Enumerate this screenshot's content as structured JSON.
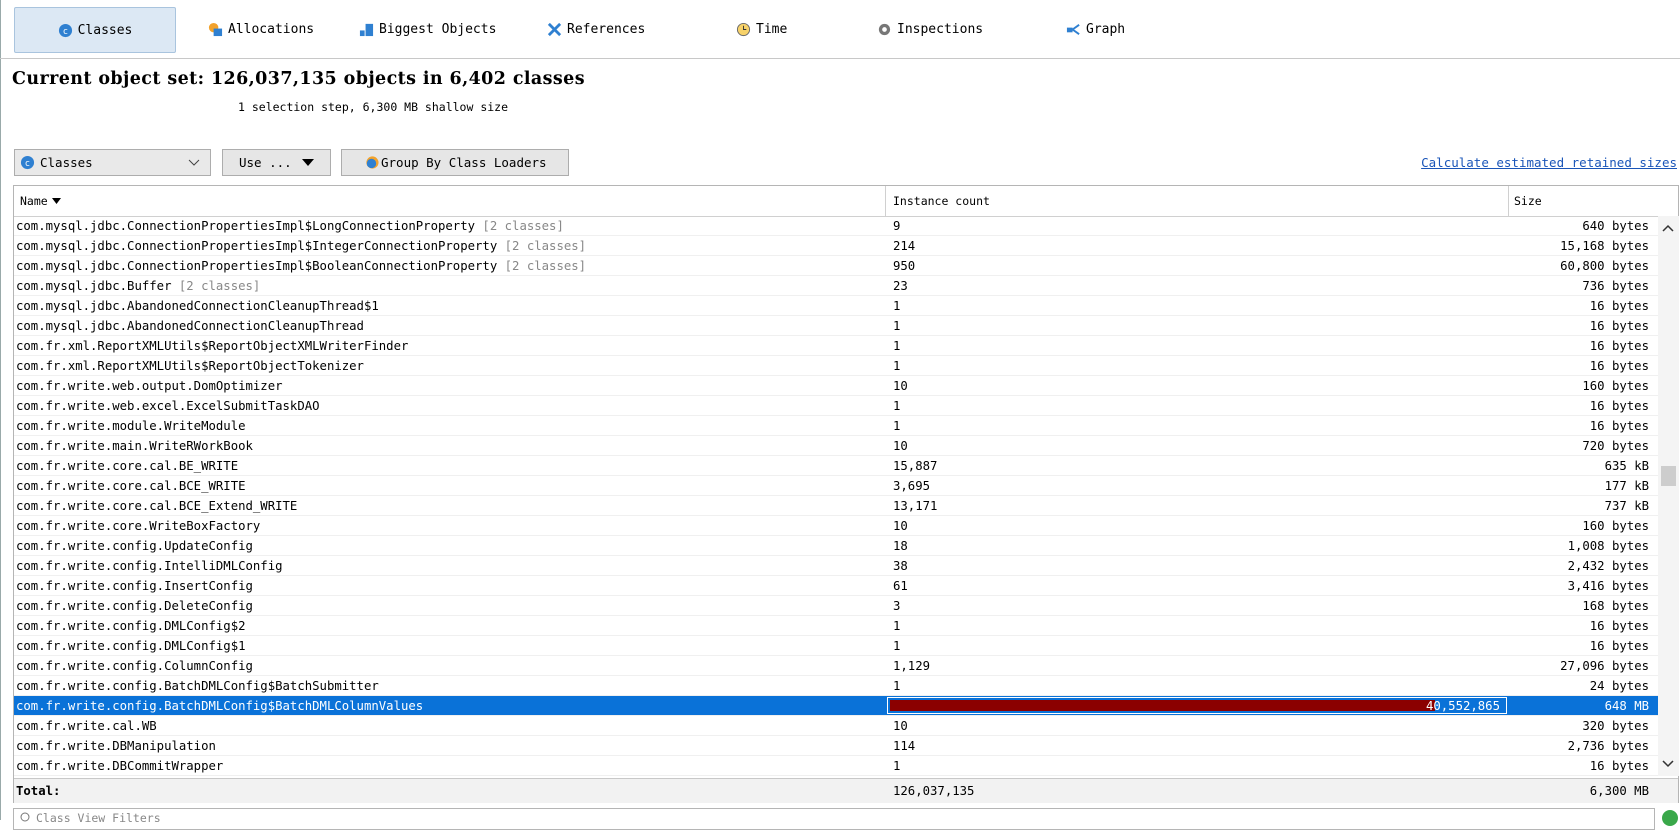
{
  "tabs": [
    "Classes",
    "Allocations",
    "Biggest Objects",
    "References",
    "Time",
    "Inspections",
    "Graph"
  ],
  "header": {
    "title": "Current object set: 126,037,135 objects in 6,402 classes",
    "subtitle": "1 selection step, 6,300 MB shallow size"
  },
  "toolbar": {
    "view_select": "Classes",
    "use_button": "Use ...",
    "group_button": "Group By Class Loaders",
    "link": "Calculate estimated retained sizes"
  },
  "table": {
    "columns": [
      "Name",
      "Instance count",
      "Size"
    ],
    "selected_row": 24,
    "rows": [
      {
        "name": "com.mysql.jdbc.ConnectionPropertiesImpl$LongConnectionProperty",
        "note": "[2 classes]",
        "count": "9",
        "size": "640 bytes"
      },
      {
        "name": "com.mysql.jdbc.ConnectionPropertiesImpl$IntegerConnectionProperty",
        "note": "[2 classes]",
        "count": "214",
        "size": "15,168 bytes"
      },
      {
        "name": "com.mysql.jdbc.ConnectionPropertiesImpl$BooleanConnectionProperty",
        "note": "[2 classes]",
        "count": "950",
        "size": "60,800 bytes"
      },
      {
        "name": "com.mysql.jdbc.Buffer",
        "note": "[2 classes]",
        "count": "23",
        "size": "736 bytes"
      },
      {
        "name": "com.mysql.jdbc.AbandonedConnectionCleanupThread$1",
        "count": "1",
        "size": "16 bytes"
      },
      {
        "name": "com.mysql.jdbc.AbandonedConnectionCleanupThread",
        "count": "1",
        "size": "16 bytes"
      },
      {
        "name": "com.fr.xml.ReportXMLUtils$ReportObjectXMLWriterFinder",
        "count": "1",
        "size": "16 bytes"
      },
      {
        "name": "com.fr.xml.ReportXMLUtils$ReportObjectTokenizer",
        "count": "1",
        "size": "16 bytes"
      },
      {
        "name": "com.fr.write.web.output.DomOptimizer",
        "count": "10",
        "size": "160 bytes"
      },
      {
        "name": "com.fr.write.web.excel.ExcelSubmitTaskDAO",
        "count": "1",
        "size": "16 bytes"
      },
      {
        "name": "com.fr.write.module.WriteModule",
        "count": "1",
        "size": "16 bytes"
      },
      {
        "name": "com.fr.write.main.WriteRWorkBook",
        "count": "10",
        "size": "720 bytes"
      },
      {
        "name": "com.fr.write.core.cal.BE_WRITE",
        "count": "15,887",
        "size": "635 kB"
      },
      {
        "name": "com.fr.write.core.cal.BCE_WRITE",
        "count": "3,695",
        "size": "177 kB"
      },
      {
        "name": "com.fr.write.core.cal.BCE_Extend_WRITE",
        "count": "13,171",
        "size": "737 kB"
      },
      {
        "name": "com.fr.write.core.WriteBoxFactory",
        "count": "10",
        "size": "160 bytes"
      },
      {
        "name": "com.fr.write.config.UpdateConfig",
        "count": "18",
        "size": "1,008 bytes"
      },
      {
        "name": "com.fr.write.config.IntelliDMLConfig",
        "count": "38",
        "size": "2,432 bytes"
      },
      {
        "name": "com.fr.write.config.InsertConfig",
        "count": "61",
        "size": "3,416 bytes"
      },
      {
        "name": "com.fr.write.config.DeleteConfig",
        "count": "3",
        "size": "168 bytes"
      },
      {
        "name": "com.fr.write.config.DMLConfig$2",
        "count": "1",
        "size": "16 bytes"
      },
      {
        "name": "com.fr.write.config.DMLConfig$1",
        "count": "1",
        "size": "16 bytes"
      },
      {
        "name": "com.fr.write.config.ColumnConfig",
        "count": "1,129",
        "size": "27,096 bytes"
      },
      {
        "name": "com.fr.write.config.BatchDMLConfig$BatchSubmitter",
        "count": "1",
        "size": "24 bytes"
      },
      {
        "name": "com.fr.write.config.BatchDMLConfig$BatchDMLColumnValues",
        "count": "40,552,865",
        "size": "648 MB"
      },
      {
        "name": "com.fr.write.cal.WB",
        "count": "10",
        "size": "320 bytes"
      },
      {
        "name": "com.fr.write.DBManipulation",
        "count": "114",
        "size": "2,736 bytes"
      },
      {
        "name": "com.fr.write.DBCommitWrapper",
        "count": "1",
        "size": "16 bytes"
      }
    ],
    "total": [
      "Total:",
      "126,037,135",
      "6,300 MB"
    ]
  },
  "filter_placeholder": "Class View Filters"
}
